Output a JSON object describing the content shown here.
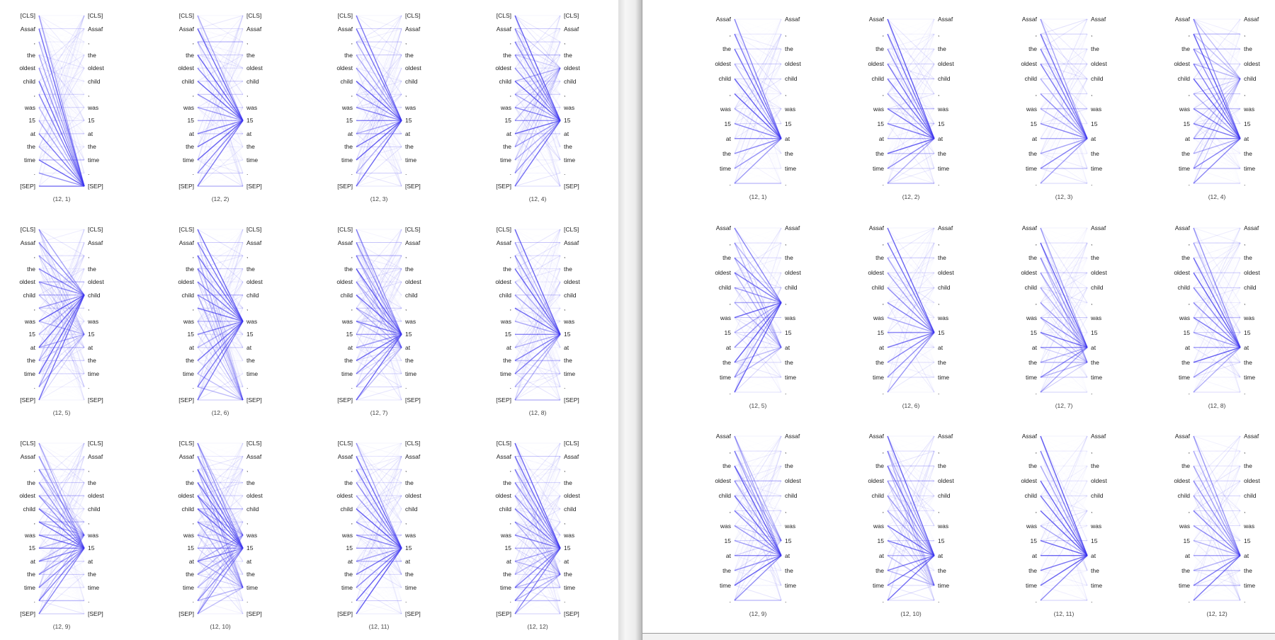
{
  "colors": {
    "line": "#3b33ee",
    "text": "#222222"
  },
  "left_panel": {
    "tokens": [
      "[CLS]",
      "Assaf",
      ",",
      "the",
      "oldest",
      "child",
      ",",
      "was",
      "15",
      "at",
      "the",
      "time",
      ".",
      "[SEP]"
    ],
    "heads": [
      {
        "caption": "(12, 1)",
        "focus": [
          13
        ]
      },
      {
        "caption": "(12, 2)",
        "focus": [
          8
        ]
      },
      {
        "caption": "(12, 3)",
        "focus": [
          8
        ]
      },
      {
        "caption": "(12, 4)",
        "focus": [
          8,
          4
        ]
      },
      {
        "caption": "(12, 5)",
        "focus": [
          5,
          8
        ]
      },
      {
        "caption": "(12, 6)",
        "focus": [
          7,
          13
        ]
      },
      {
        "caption": "(12, 7)",
        "focus": [
          8,
          9
        ]
      },
      {
        "caption": "(12, 8)",
        "focus": [
          8
        ]
      },
      {
        "caption": "(12, 9)",
        "focus": [
          8,
          7
        ]
      },
      {
        "caption": "(12, 10)",
        "focus": [
          8,
          11,
          7
        ]
      },
      {
        "caption": "(12, 11)",
        "focus": [
          8
        ]
      },
      {
        "caption": "(12, 12)",
        "focus": [
          8,
          10
        ]
      }
    ]
  },
  "right_panel": {
    "tokens": [
      "Assaf",
      ",",
      "the",
      "oldest",
      "child",
      ",",
      "was",
      "15",
      "at",
      "the",
      "time",
      "."
    ],
    "heads": [
      {
        "caption": "(12, 1)",
        "focus": [
          8
        ]
      },
      {
        "caption": "(12, 2)",
        "focus": [
          8
        ]
      },
      {
        "caption": "(12, 3)",
        "focus": [
          8
        ]
      },
      {
        "caption": "(12, 4)",
        "focus": [
          8,
          4
        ]
      },
      {
        "caption": "(12, 5)",
        "focus": [
          5,
          8
        ]
      },
      {
        "caption": "(12, 6)",
        "focus": [
          7
        ]
      },
      {
        "caption": "(12, 7)",
        "focus": [
          8,
          9
        ]
      },
      {
        "caption": "(12, 8)",
        "focus": [
          8
        ]
      },
      {
        "caption": "(12, 9)",
        "focus": [
          8,
          7
        ]
      },
      {
        "caption": "(12, 10)",
        "focus": [
          8,
          10
        ]
      },
      {
        "caption": "(12, 11)",
        "focus": [
          8
        ]
      },
      {
        "caption": "(12, 12)",
        "focus": [
          8
        ]
      }
    ]
  }
}
